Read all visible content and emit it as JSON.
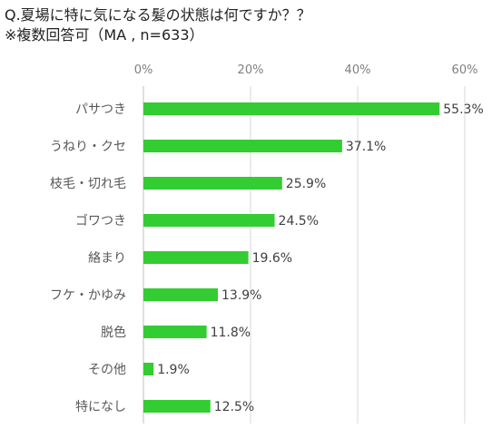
{
  "titles": {
    "line1": "Q.夏場に特に気になる髪の状態は何ですか？？",
    "line2": "※複数回答可（MA , n=633）"
  },
  "chart_data": {
    "type": "bar",
    "orientation": "horizontal",
    "categories": [
      "パサつき",
      "うねり・クセ",
      "枝毛・切れ毛",
      "ゴワつき",
      "絡まり",
      "フケ・かゆみ",
      "脱色",
      "その他",
      "特になし"
    ],
    "values": [
      55.3,
      37.1,
      25.9,
      24.5,
      19.6,
      13.9,
      11.8,
      1.9,
      12.5
    ],
    "value_labels": [
      "55.3%",
      "37.1%",
      "25.9%",
      "24.5%",
      "19.6%",
      "13.9%",
      "11.8%",
      "1.9%",
      "12.5%"
    ],
    "xlim": [
      0,
      60
    ],
    "x_ticks": [
      0,
      20,
      40,
      60
    ],
    "x_tick_labels": [
      "0%",
      "20%",
      "40%",
      "60%"
    ],
    "axis_position": "top",
    "grid": true,
    "bar_color": "#33cc33"
  }
}
